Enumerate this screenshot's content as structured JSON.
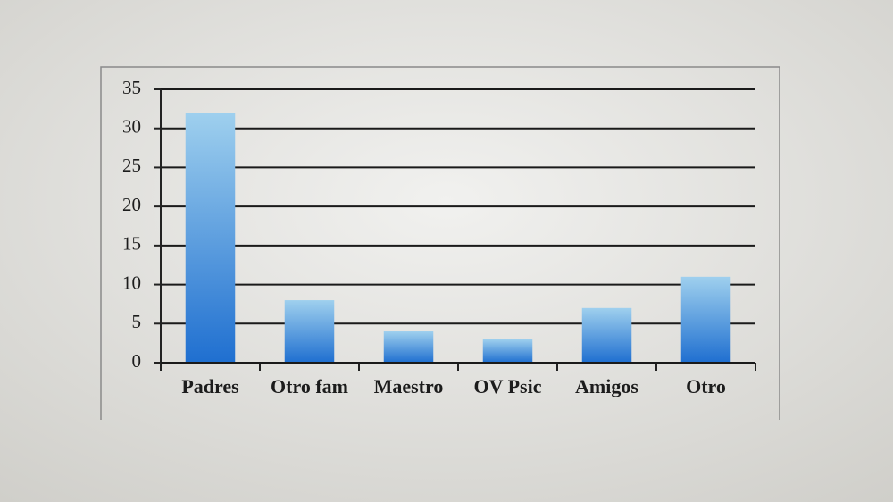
{
  "chart_data": {
    "type": "bar",
    "categories": [
      "Padres",
      "Otro fam",
      "Maestro",
      "OV Psic",
      "Amigos",
      "Otro"
    ],
    "values": [
      32,
      8,
      4,
      3,
      7,
      11
    ],
    "color": "#1f6fd0",
    "ylim": [
      0,
      35
    ],
    "yticks": [
      0,
      5,
      10,
      15,
      20,
      25,
      30,
      35
    ],
    "grid": true
  }
}
